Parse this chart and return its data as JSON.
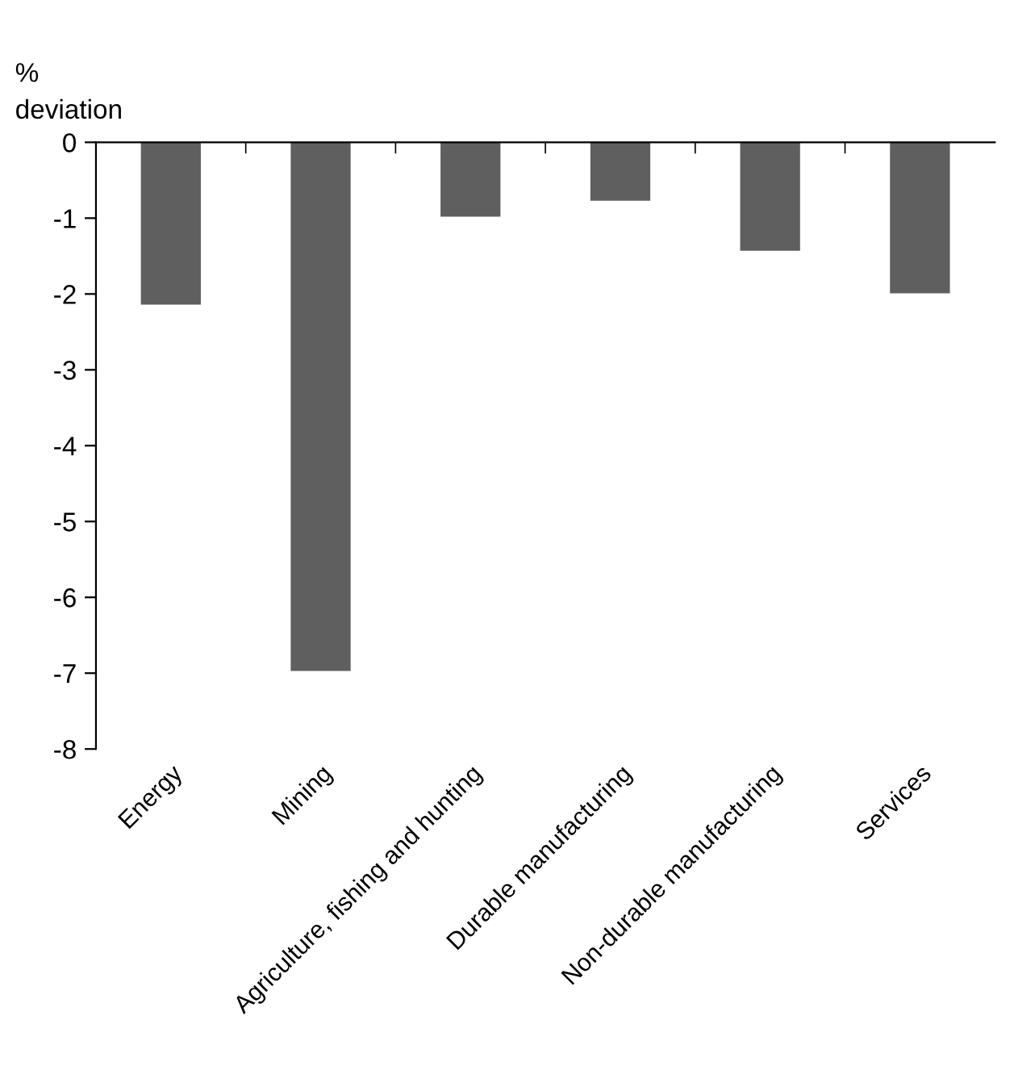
{
  "chart_data": {
    "type": "bar",
    "ylabel": "%\ndeviation",
    "categories": [
      "Energy",
      "Mining",
      "Agriculture, fishing and hunting",
      "Durable manufacturing",
      "Non-durable manufacturing",
      "Services"
    ],
    "values": [
      -2.14,
      -6.97,
      -0.98,
      -0.77,
      -1.43,
      -1.99
    ],
    "color": "#5f5f5f",
    "ylim": [
      -8,
      0
    ],
    "yticks": [
      -8,
      -7,
      -6,
      -5,
      -4,
      -3,
      -2,
      -1,
      0
    ],
    "grid": false,
    "legend": false
  }
}
